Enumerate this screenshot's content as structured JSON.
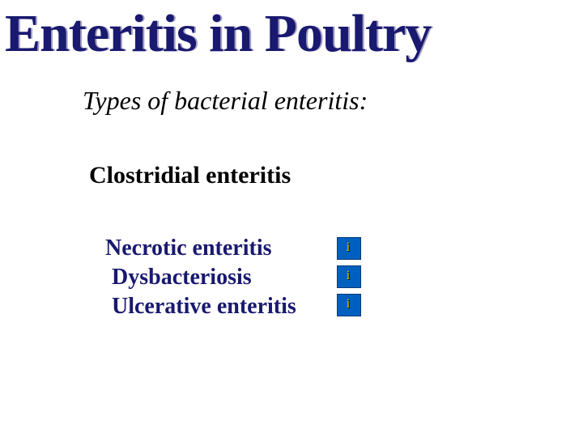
{
  "title": "Enteritis in Poultry",
  "subtitle": "Types of bacterial  enteritis:",
  "section_header": "Clostridial enteritis",
  "items": [
    {
      "label": "Necrotic enteritis"
    },
    {
      "label": "Dysbacteriosis"
    },
    {
      "label": "Ulcerative enteritis"
    }
  ],
  "colors": {
    "title_main": "#191970",
    "title_shadow": "#a59fc4",
    "item_text": "#191970",
    "icon_bg": "#0060c0",
    "icon_border": "#003a78",
    "icon_i": "#d8c800",
    "icon_i_shadow": "#000000",
    "background": "#ffffff"
  },
  "typography": {
    "title_fontsize": 66,
    "subtitle_fontsize": 32,
    "section_fontsize": 30,
    "item_fontsize": 28,
    "font_family": "Times New Roman"
  },
  "icon_glyph": "i"
}
